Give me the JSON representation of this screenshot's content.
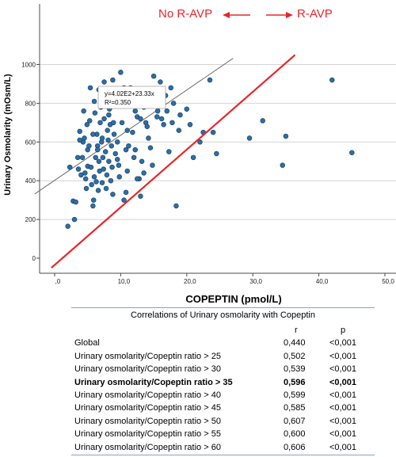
{
  "chart_data": {
    "type": "scatter",
    "xlabel": "COPEPTIN (pmol/L)",
    "ylabel": "Urinary Osmolarity (mOsm/L)",
    "xlim": [
      -3,
      50
    ],
    "ylim": [
      -50,
      1050
    ],
    "x_ticks": [
      ",0",
      "10,0",
      "20,0",
      "30,0",
      "40,0",
      "50,0"
    ],
    "x_tick_values": [
      0,
      10,
      20,
      30,
      40,
      50
    ],
    "y_ticks": [
      "0",
      "200",
      "400",
      "600",
      "800",
      "1000"
    ],
    "y_tick_values": [
      0,
      200,
      400,
      600,
      800,
      1000
    ],
    "grid": "horizontal",
    "point_color": "#2e6ea4",
    "fit_line": {
      "intercept": 402,
      "slope": 23.33,
      "x_range": [
        -3,
        27
      ],
      "color": "#6b6b6b"
    },
    "fit_equation": "y=4.02E2+23.33x",
    "fit_r2": "R²=0.350",
    "threshold_line": {
      "color": "#e8262a",
      "from": [
        -0.5,
        -50
      ],
      "to": [
        36.4,
        1050
      ]
    },
    "region_labels": {
      "left": "No R-AVP",
      "right": "R-AVP"
    },
    "arrow_color": "#e8262a",
    "series": [
      {
        "values": [
          [
            2.0,
            165
          ],
          [
            2.3,
            470
          ],
          [
            2.8,
            295
          ],
          [
            3.0,
            200
          ],
          [
            3.2,
            290
          ],
          [
            3.5,
            520
          ],
          [
            3.6,
            460
          ],
          [
            3.8,
            655
          ],
          [
            4.0,
            430
          ],
          [
            4.2,
            520
          ],
          [
            4.3,
            600
          ],
          [
            4.5,
            620
          ],
          [
            4.6,
            440
          ],
          [
            4.7,
            410
          ],
          [
            4.8,
            360
          ],
          [
            5.0,
            475
          ],
          [
            5.0,
            560
          ],
          [
            5.2,
            580
          ],
          [
            5.3,
            710
          ],
          [
            5.5,
            470
          ],
          [
            5.6,
            380
          ],
          [
            5.8,
            270
          ],
          [
            5.9,
            300
          ],
          [
            6.0,
            420
          ],
          [
            6.0,
            810
          ],
          [
            6.1,
            750
          ],
          [
            6.2,
            520
          ],
          [
            6.3,
            395
          ],
          [
            6.4,
            640
          ],
          [
            6.5,
            580
          ],
          [
            6.6,
            350
          ],
          [
            6.7,
            500
          ],
          [
            6.8,
            450
          ],
          [
            6.9,
            700
          ],
          [
            7.0,
            780
          ],
          [
            7.1,
            600
          ],
          [
            7.2,
            390
          ],
          [
            7.3,
            520
          ],
          [
            7.4,
            460
          ],
          [
            7.5,
            720
          ],
          [
            7.6,
            860
          ],
          [
            7.7,
            550
          ],
          [
            7.8,
            360
          ],
          [
            7.9,
            430
          ],
          [
            8.0,
            660
          ],
          [
            8.1,
            610
          ],
          [
            8.2,
            500
          ],
          [
            8.3,
            770
          ],
          [
            8.4,
            690
          ],
          [
            8.5,
            400
          ],
          [
            8.6,
            580
          ],
          [
            8.7,
            470
          ],
          [
            8.8,
            330
          ],
          [
            8.9,
            700
          ],
          [
            9.0,
            640
          ],
          [
            9.2,
            540
          ],
          [
            9.3,
            820
          ],
          [
            9.5,
            600
          ],
          [
            9.7,
            480
          ],
          [
            9.8,
            420
          ],
          [
            10.0,
            960
          ],
          [
            10.2,
            700
          ],
          [
            10.5,
            300
          ],
          [
            10.8,
            340
          ],
          [
            11.0,
            660
          ],
          [
            11.2,
            580
          ],
          [
            11.5,
            880
          ],
          [
            12.0,
            520
          ],
          [
            12.2,
            560
          ],
          [
            12.5,
            730
          ],
          [
            12.8,
            410
          ],
          [
            13.0,
            320
          ],
          [
            13.2,
            500
          ],
          [
            13.5,
            780
          ],
          [
            13.8,
            700
          ],
          [
            14.0,
            680
          ],
          [
            14.2,
            620
          ],
          [
            14.5,
            570
          ],
          [
            14.8,
            480
          ],
          [
            15.0,
            940
          ],
          [
            15.3,
            820
          ],
          [
            15.6,
            760
          ],
          [
            16.0,
            910
          ],
          [
            16.2,
            720
          ],
          [
            16.5,
            690
          ],
          [
            16.8,
            840
          ],
          [
            17.0,
            760
          ],
          [
            17.3,
            550
          ],
          [
            17.6,
            880
          ],
          [
            18.0,
            800
          ],
          [
            18.4,
            270
          ],
          [
            18.8,
            660
          ],
          [
            19.0,
            740
          ],
          [
            20.0,
            770
          ],
          [
            20.5,
            690
          ],
          [
            21.0,
            520
          ],
          [
            22.0,
            600
          ],
          [
            22.5,
            650
          ],
          [
            23.5,
            920
          ],
          [
            24.0,
            650
          ],
          [
            24.5,
            540
          ],
          [
            29.5,
            620
          ],
          [
            31.5,
            710
          ],
          [
            34.5,
            480
          ],
          [
            35.0,
            630
          ],
          [
            42.0,
            920
          ],
          [
            45.0,
            545
          ],
          [
            3.8,
            610
          ],
          [
            4.4,
            760
          ],
          [
            5.4,
            880
          ],
          [
            6.7,
            870
          ],
          [
            7.5,
            910
          ],
          [
            8.8,
            920
          ],
          [
            9.8,
            850
          ],
          [
            10.5,
            880
          ],
          [
            12.2,
            760
          ],
          [
            11.0,
            450
          ],
          [
            12.5,
            410
          ],
          [
            13.5,
            440
          ],
          [
            8.2,
            740
          ],
          [
            7.2,
            620
          ],
          [
            6.5,
            560
          ],
          [
            5.8,
            640
          ],
          [
            4.9,
            690
          ],
          [
            10.8,
            560
          ],
          [
            9.5,
            510
          ],
          [
            11.8,
            650
          ],
          [
            15.5,
            730
          ],
          [
            17.8,
            700
          ],
          [
            13.0,
            720
          ]
        ]
      }
    ],
    "table": {
      "title": "Correlations of Urinary osmolarity with Copeptin",
      "headers": [
        "",
        "r",
        "p"
      ],
      "rows": [
        {
          "label": "Global",
          "r": "0,440",
          "p": "<0,001",
          "bold": false
        },
        {
          "label": "Urinary osmolarity/Copeptin ratio > 25",
          "r": "0,502",
          "p": "<0,001",
          "bold": false
        },
        {
          "label": "Urinary osmolarity/Copeptin ratio > 30",
          "r": "0,539",
          "p": "<0,001",
          "bold": false
        },
        {
          "label": "Urinary osmolarity/Copeptin ratio > 35",
          "r": "0,596",
          "p": "<0,001",
          "bold": true
        },
        {
          "label": "Urinary osmolarity/Copeptin ratio > 40",
          "r": "0,599",
          "p": "<0,001",
          "bold": false
        },
        {
          "label": "Urinary osmolarity/Copeptin ratio > 45",
          "r": "0,585",
          "p": "<0,001",
          "bold": false
        },
        {
          "label": "Urinary osmolarity/Copeptin ratio > 50",
          "r": "0,607",
          "p": "<0,001",
          "bold": false
        },
        {
          "label": "Urinary osmolarity/Copeptin ratio > 55",
          "r": "0,600",
          "p": "<0,001",
          "bold": false
        },
        {
          "label": "Urinary osmolarity/Copeptin ratio > 60",
          "r": "0,606",
          "p": "<0,001",
          "bold": false
        }
      ]
    }
  }
}
